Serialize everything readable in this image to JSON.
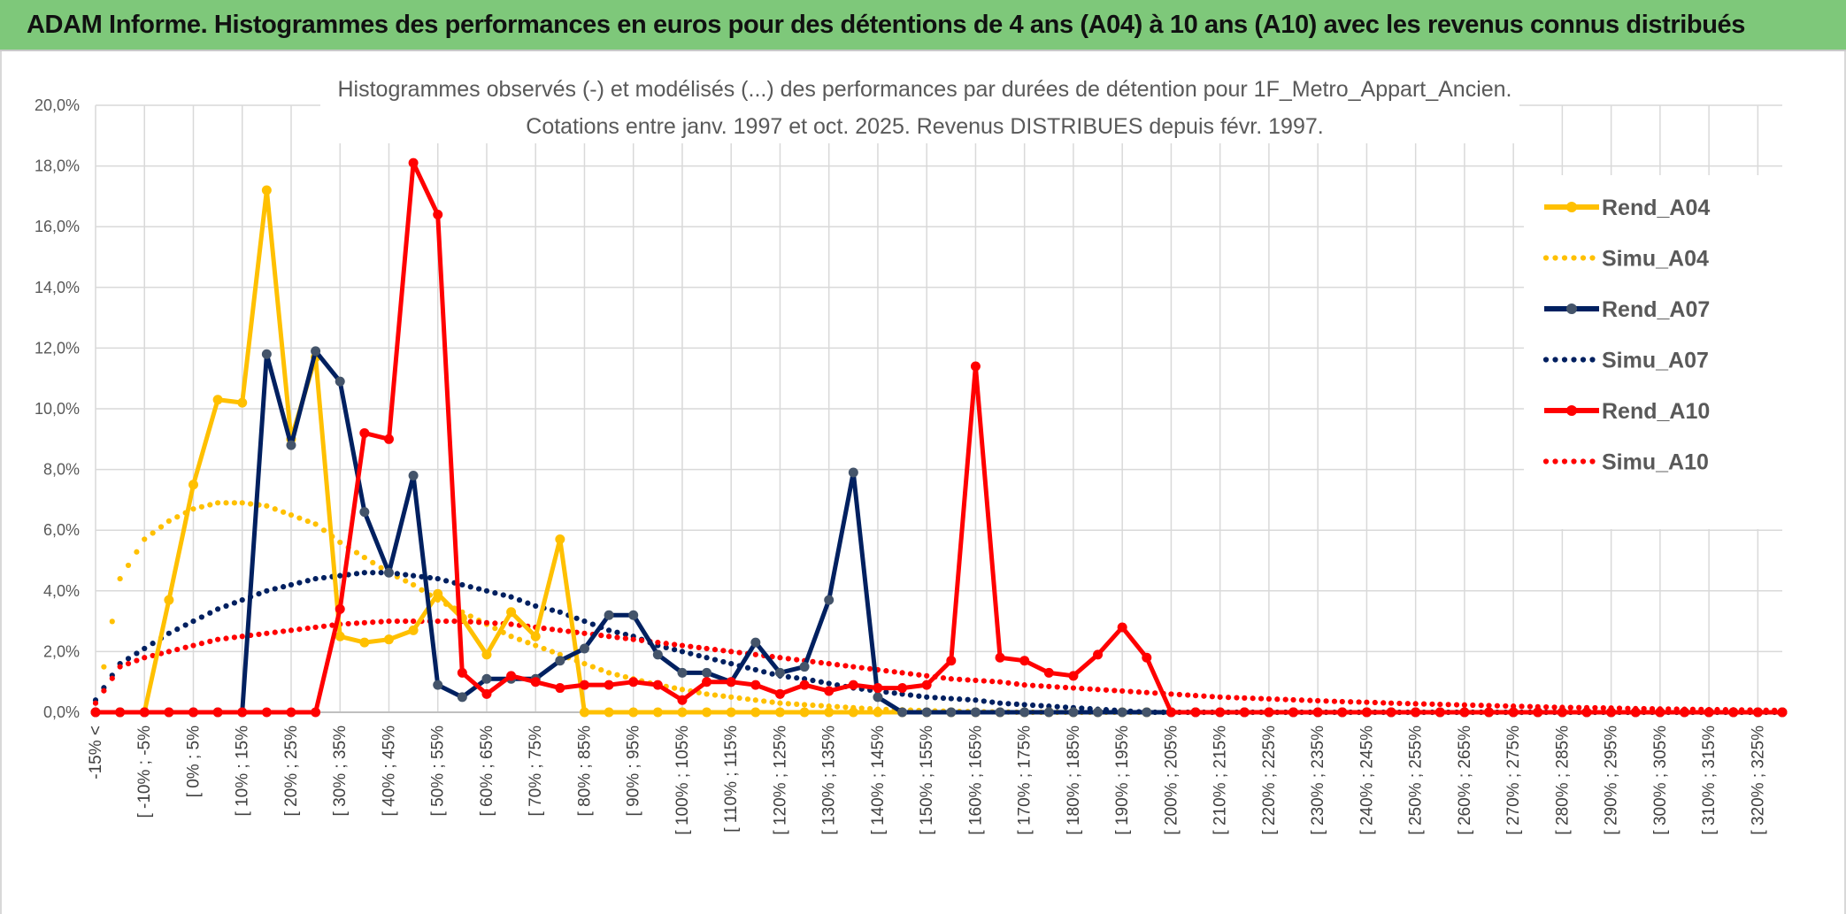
{
  "banner": {
    "title": "ADAM Informe. Histogrammes des performances en euros pour des détentions de 4 ans (A04) à 10 ans (A10) avec les revenus connus distribués"
  },
  "chart_data": {
    "type": "line",
    "title": "Histogrammes observés (-) et modélisés (...) des performances par durées de détention pour 1F_Metro_Appart_Ancien.",
    "subtitle": "Cotations entre janv. 1997 et oct. 2025. Revenus DISTRIBUES depuis févr. 1997.",
    "ylim": [
      0,
      20
    ],
    "y_ticks": [
      "0,0%",
      "2,0%",
      "4,0%",
      "6,0%",
      "8,0%",
      "10,0%",
      "12,0%",
      "14,0%",
      "16,0%",
      "18,0%",
      "20,0%"
    ],
    "grid": true,
    "legend_position": "right",
    "x_ticks": [
      "-15% <",
      "[ -10% ; -5%",
      "[ 0% ; 5%",
      "[ 10% ; 15%",
      "[ 20% ; 25%",
      "[ 30% ; 35%",
      "[ 40% ; 45%",
      "[ 50% ; 55%",
      "[ 60% ; 65%",
      "[ 70% ; 75%",
      "[ 80% ; 85%",
      "[ 90% ; 95%",
      "[ 100% ; 105%",
      "[ 110% ; 115%",
      "[ 120% ; 125%",
      "[ 130% ; 135%",
      "[ 140% ; 145%",
      "[ 150% ; 155%",
      "[ 160% ; 165%",
      "[ 170% ; 175%",
      "[ 180% ; 185%",
      "[ 190% ; 195%",
      "[ 200% ; 205%",
      "[ 210% ; 215%",
      "[ 220% ; 225%",
      "[ 230% ; 235%",
      "[ 240% ; 245%",
      "[ 250% ; 255%",
      "[ 260% ; 265%",
      "[ 270% ; 275%",
      "[ 280% ; 285%",
      "[ 290% ; 295%",
      "[ 300% ; 305%",
      "[ 310% ; 315%",
      "[ 320% ; 325%"
    ],
    "series": [
      {
        "name": "Rend_A04",
        "color": "#ffc000",
        "style": "solid",
        "values": [
          0,
          0,
          0,
          3.7,
          7.5,
          10.3,
          10.2,
          17.2,
          9,
          11.7,
          2.5,
          2.3,
          2.4,
          2.7,
          3.9,
          3.1,
          1.9,
          3.3,
          2.5,
          5.7,
          0,
          0,
          0,
          0,
          0,
          0,
          0,
          0,
          0,
          0,
          0,
          0,
          0,
          0,
          0,
          0,
          0,
          0,
          0,
          0,
          0,
          0,
          0,
          0,
          0,
          0,
          0,
          0,
          0,
          0,
          0,
          0,
          0,
          0,
          0,
          0,
          0,
          0,
          0,
          0,
          0,
          0,
          0,
          0,
          0,
          0,
          0,
          0,
          0,
          0
        ]
      },
      {
        "name": "Simu_A04",
        "color": "#ffc000",
        "style": "dotted",
        "values": [
          0,
          4.4,
          5.7,
          6.3,
          6.7,
          6.9,
          6.9,
          6.8,
          6.5,
          6.2,
          5.6,
          5.1,
          4.6,
          4.2,
          3.7,
          3.3,
          2.9,
          2.5,
          2.2,
          1.9,
          1.6,
          1.3,
          1.1,
          0.9,
          0.75,
          0.6,
          0.5,
          0.4,
          0.3,
          0.25,
          0.2,
          0.15,
          0.1,
          0.08,
          0.05,
          0.03,
          0.02,
          0.01,
          0,
          0,
          0,
          0,
          0,
          0,
          0,
          0,
          0,
          0,
          0,
          0,
          0,
          0,
          0,
          0,
          0,
          0,
          0,
          0,
          0,
          0,
          0,
          0,
          0,
          0,
          0,
          0,
          0,
          0,
          0,
          0
        ]
      },
      {
        "name": "Rend_A07",
        "color": "#002060",
        "style": "solid",
        "values": [
          0,
          0,
          0,
          0,
          0,
          0,
          0,
          11.8,
          8.8,
          11.9,
          10.9,
          6.6,
          4.6,
          7.8,
          0.9,
          0.5,
          1.1,
          1.1,
          1.1,
          1.7,
          2.1,
          3.2,
          3.2,
          1.9,
          1.3,
          1.3,
          1,
          2.3,
          1.3,
          1.5,
          3.7,
          7.9,
          0.5,
          0,
          0,
          0,
          0,
          0,
          0,
          0,
          0,
          0,
          0,
          0,
          0,
          0,
          0,
          0,
          0,
          0,
          0,
          0,
          0,
          0,
          0,
          0,
          0,
          0,
          0,
          0,
          0,
          0,
          0,
          0,
          0,
          0,
          0,
          0,
          0,
          0
        ]
      },
      {
        "name": "Simu_A07",
        "color": "#002060",
        "style": "dotted",
        "values": [
          0.4,
          1.6,
          2.1,
          2.6,
          3,
          3.4,
          3.7,
          4,
          4.2,
          4.4,
          4.5,
          4.6,
          4.6,
          4.5,
          4.4,
          4.2,
          4,
          3.8,
          3.5,
          3.3,
          3,
          2.7,
          2.5,
          2.2,
          2,
          1.8,
          1.6,
          1.4,
          1.2,
          1.1,
          0.95,
          0.8,
          0.7,
          0.6,
          0.5,
          0.45,
          0.4,
          0.3,
          0.25,
          0.2,
          0.15,
          0.1,
          0.05,
          0,
          0,
          0,
          0,
          0,
          0,
          0,
          0,
          0,
          0,
          0,
          0,
          0,
          0,
          0,
          0,
          0,
          0,
          0,
          0,
          0,
          0,
          0,
          0,
          0,
          0,
          0
        ]
      },
      {
        "name": "Rend_A10",
        "color": "#ff0000",
        "style": "solid",
        "values": [
          0,
          0,
          0,
          0,
          0,
          0,
          0,
          0,
          0,
          0,
          3.4,
          9.2,
          9,
          18.1,
          16.4,
          1.3,
          0.6,
          1.2,
          1,
          0.8,
          0.9,
          0.9,
          1,
          0.9,
          0.4,
          1,
          1,
          0.9,
          0.6,
          0.9,
          0.7,
          0.9,
          0.8,
          0.8,
          0.9,
          1.7,
          11.4,
          1.8,
          1.7,
          1.3,
          1.2,
          1.9,
          2.8,
          1.8,
          0,
          0,
          0,
          0,
          0,
          0,
          0,
          0,
          0,
          0,
          0,
          0,
          0,
          0,
          0,
          0,
          0,
          0,
          0,
          0,
          0,
          0,
          0,
          0,
          0,
          0
        ]
      },
      {
        "name": "Simu_A10",
        "color": "#ff0000",
        "style": "dotted",
        "values": [
          0.3,
          1.5,
          1.8,
          2,
          2.2,
          2.4,
          2.5,
          2.6,
          2.7,
          2.8,
          2.9,
          2.95,
          3,
          3,
          3,
          3,
          2.95,
          2.9,
          2.8,
          2.7,
          2.6,
          2.5,
          2.4,
          2.3,
          2.2,
          2.1,
          2,
          1.9,
          1.8,
          1.7,
          1.6,
          1.5,
          1.4,
          1.3,
          1.2,
          1.1,
          1.05,
          1,
          0.9,
          0.85,
          0.8,
          0.75,
          0.7,
          0.65,
          0.6,
          0.55,
          0.5,
          0.47,
          0.44,
          0.41,
          0.38,
          0.35,
          0.33,
          0.3,
          0.28,
          0.26,
          0.24,
          0.22,
          0.2,
          0.18,
          0.16,
          0.15,
          0.14,
          0.12,
          0.11,
          0.1,
          0.09,
          0.08,
          0.07,
          0.06
        ]
      }
    ]
  }
}
